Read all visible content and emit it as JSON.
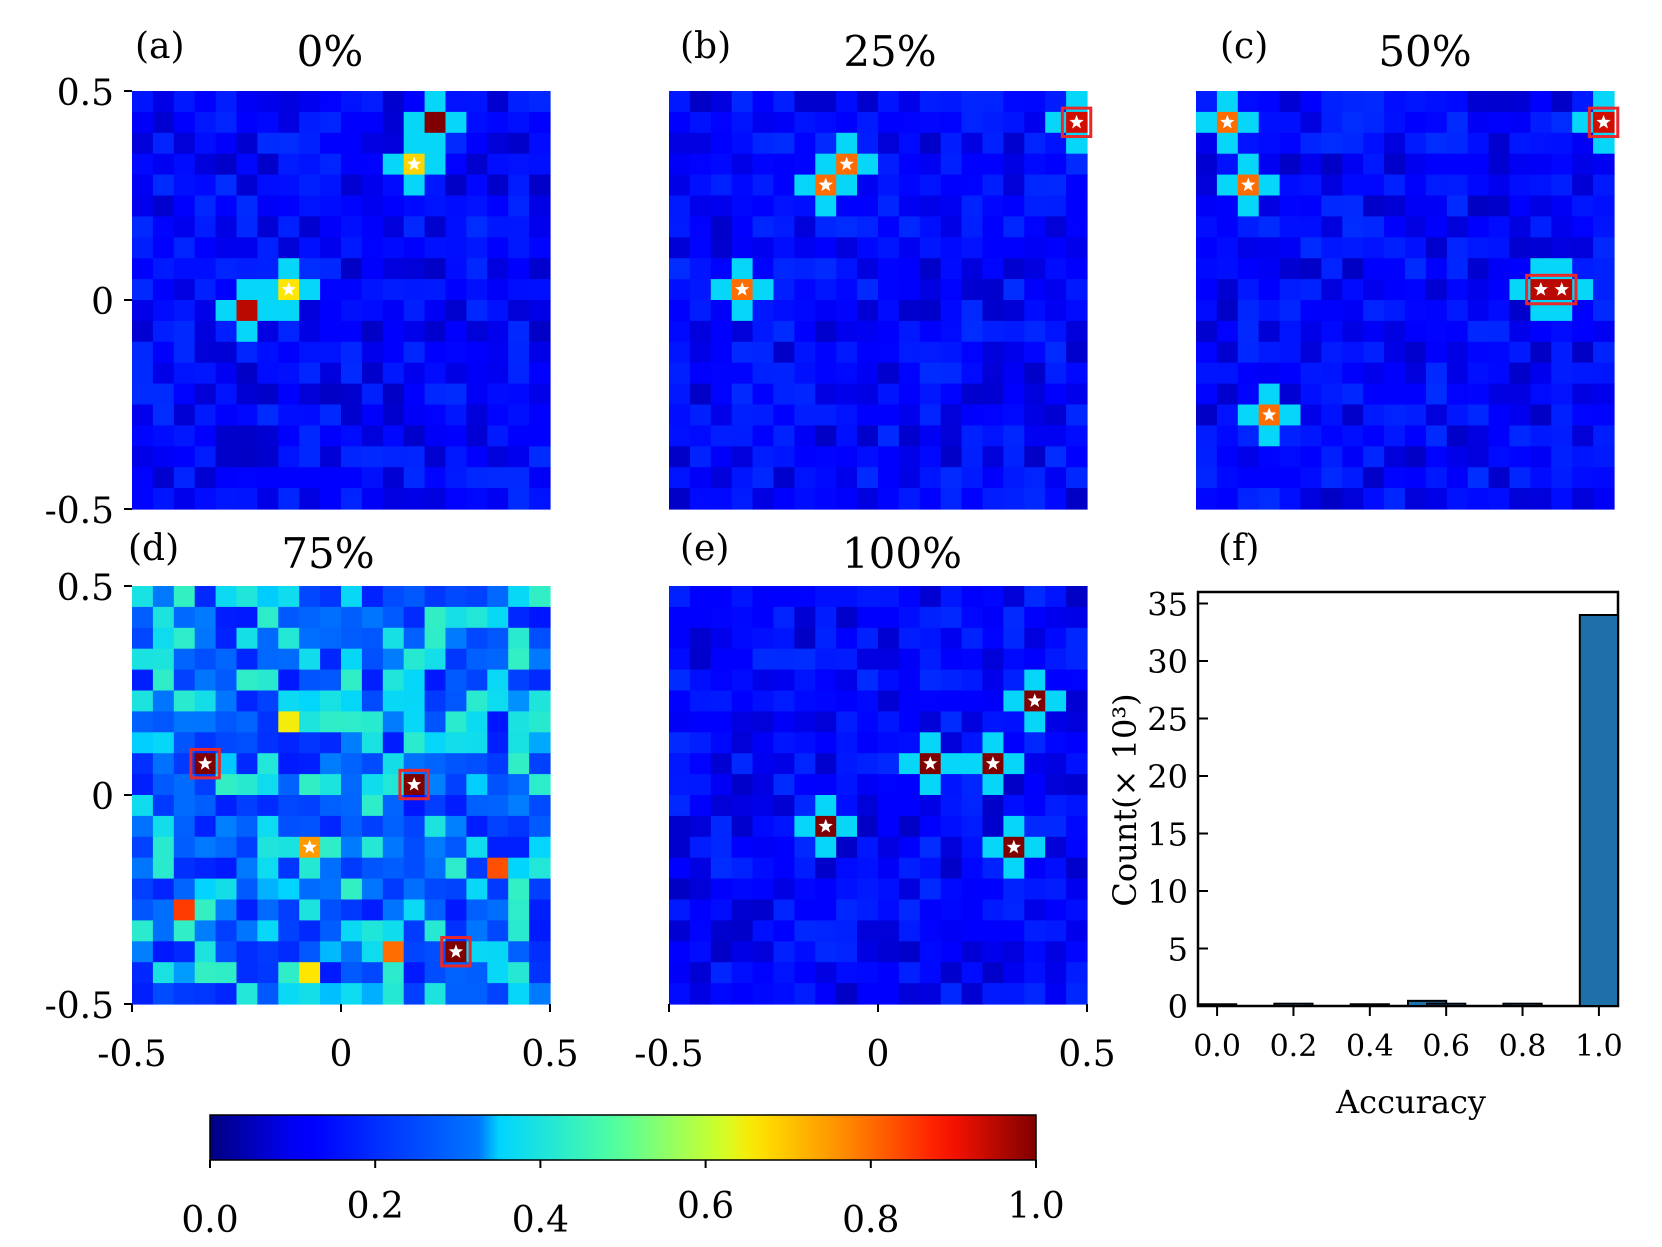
{
  "chart_data": [
    {
      "type": "heatmap",
      "panel": "(a)",
      "title": "0%",
      "grid": [
        20,
        20
      ],
      "xlim": [
        -0.5,
        0.5
      ],
      "ylim": [
        -0.5,
        0.5
      ],
      "xticks": [],
      "yticks": [
        "0.5",
        "0",
        "-0.5"
      ],
      "background_level": 0.13,
      "background_variation": 0.07,
      "hotspots": [
        {
          "col": 14,
          "row": 1,
          "v": 1.0,
          "glow": true,
          "star": false,
          "box": false
        },
        {
          "col": 13,
          "row": 3,
          "v": 0.68,
          "glow": true,
          "star": true,
          "box": false
        },
        {
          "col": 7,
          "row": 9,
          "v": 0.66,
          "glow": true,
          "star": true,
          "box": false
        },
        {
          "col": 5,
          "row": 10,
          "v": 0.95,
          "glow": true,
          "star": false,
          "box": false
        }
      ]
    },
    {
      "type": "heatmap",
      "panel": "(b)",
      "title": "25%",
      "grid": [
        20,
        20
      ],
      "xlim": [
        -0.5,
        0.5
      ],
      "ylim": [
        -0.5,
        0.5
      ],
      "xticks": [],
      "yticks": [],
      "background_level": 0.13,
      "background_variation": 0.07,
      "hotspots": [
        {
          "col": 19,
          "row": 1,
          "v": 0.93,
          "glow": true,
          "star": true,
          "box": true
        },
        {
          "col": 8,
          "row": 3,
          "v": 0.8,
          "glow": true,
          "star": true,
          "box": false
        },
        {
          "col": 7,
          "row": 4,
          "v": 0.8,
          "glow": true,
          "star": true,
          "box": false
        },
        {
          "col": 3,
          "row": 9,
          "v": 0.8,
          "glow": true,
          "star": true,
          "box": false
        }
      ]
    },
    {
      "type": "heatmap",
      "panel": "(c)",
      "title": "50%",
      "grid": [
        20,
        20
      ],
      "xlim": [
        -0.5,
        0.5
      ],
      "ylim": [
        -0.5,
        0.5
      ],
      "xticks": [],
      "yticks": [],
      "background_level": 0.13,
      "background_variation": 0.07,
      "hotspots": [
        {
          "col": 1,
          "row": 1,
          "v": 0.8,
          "glow": true,
          "star": true,
          "box": false
        },
        {
          "col": 19,
          "row": 1,
          "v": 0.93,
          "glow": true,
          "star": true,
          "box": true
        },
        {
          "col": 2,
          "row": 4,
          "v": 0.8,
          "glow": true,
          "star": true,
          "box": false
        },
        {
          "col": 16,
          "row": 9,
          "v": 0.95,
          "glow": true,
          "star": true,
          "box": true,
          "w": 2
        },
        {
          "col": 3,
          "row": 15,
          "v": 0.8,
          "glow": true,
          "star": true,
          "box": false
        }
      ]
    },
    {
      "type": "heatmap",
      "panel": "(d)",
      "title": "75%",
      "grid": [
        20,
        20
      ],
      "xlim": [
        -0.5,
        0.5
      ],
      "ylim": [
        -0.5,
        0.5
      ],
      "xticks": [
        "-0.5",
        "0",
        "0.5"
      ],
      "yticks": [
        "0.5",
        "0",
        "-0.5"
      ],
      "background_level": 0.3,
      "background_variation": 0.14,
      "hotspots": [
        {
          "col": 3,
          "row": 8,
          "v": 1.0,
          "glow": false,
          "star": true,
          "box": true
        },
        {
          "col": 13,
          "row": 9,
          "v": 1.0,
          "glow": false,
          "star": true,
          "box": true
        },
        {
          "col": 15,
          "row": 17,
          "v": 1.0,
          "glow": false,
          "star": true,
          "box": true
        },
        {
          "col": 8,
          "row": 12,
          "v": 0.75,
          "glow": false,
          "star": true,
          "box": false
        },
        {
          "col": 7,
          "row": 6,
          "v": 0.65,
          "glow": false,
          "star": false,
          "box": false
        },
        {
          "col": 8,
          "row": 18,
          "v": 0.66,
          "glow": false,
          "star": false,
          "box": false
        },
        {
          "col": 12,
          "row": 17,
          "v": 0.8,
          "glow": false,
          "star": false,
          "box": false
        },
        {
          "col": 2,
          "row": 15,
          "v": 0.85,
          "glow": false,
          "star": false,
          "box": false
        },
        {
          "col": 17,
          "row": 13,
          "v": 0.83,
          "glow": false,
          "star": false,
          "box": false
        }
      ]
    },
    {
      "type": "heatmap",
      "panel": "(e)",
      "title": "100%",
      "grid": [
        20,
        20
      ],
      "xlim": [
        -0.5,
        0.5
      ],
      "ylim": [
        -0.5,
        0.5
      ],
      "xticks": [
        "-0.5",
        "0",
        "0.5"
      ],
      "yticks": [],
      "background_level": 0.13,
      "background_variation": 0.07,
      "hotspots": [
        {
          "col": 17,
          "row": 5,
          "v": 1.0,
          "glow": true,
          "star": true,
          "box": false
        },
        {
          "col": 12,
          "row": 8,
          "v": 1.0,
          "glow": true,
          "star": true,
          "box": false
        },
        {
          "col": 15,
          "row": 8,
          "v": 1.0,
          "glow": true,
          "star": true,
          "box": false
        },
        {
          "col": 7,
          "row": 11,
          "v": 1.0,
          "glow": true,
          "star": true,
          "box": false
        },
        {
          "col": 16,
          "row": 12,
          "v": 1.0,
          "glow": true,
          "star": true,
          "box": false
        }
      ]
    },
    {
      "type": "bar",
      "panel": "(f)",
      "title": "",
      "xlabel": "Accuracy",
      "ylabel": "Count(× 10³)",
      "x": [
        0.0,
        0.2,
        0.4,
        0.6,
        0.8,
        1.0
      ],
      "xtick_labels": [
        "0.0",
        "0.2",
        "0.4",
        "0.6",
        "0.8",
        "1.0"
      ],
      "xlim": [
        -0.05,
        1.05
      ],
      "ylim": [
        0,
        36
      ],
      "yticks": [
        0,
        5,
        10,
        15,
        20,
        25,
        30,
        35
      ],
      "ytick_labels": [
        "0",
        "5",
        "10",
        "15",
        "20",
        "25",
        "30",
        "35"
      ],
      "bar_width": 0.1,
      "bars": [
        {
          "x": 0.0,
          "value": 0.15
        },
        {
          "x": 0.2,
          "value": 0.2
        },
        {
          "x": 0.4,
          "value": 0.15
        },
        {
          "x": 0.55,
          "value": 0.45
        },
        {
          "x": 0.6,
          "value": 0.2
        },
        {
          "x": 0.8,
          "value": 0.2
        },
        {
          "x": 1.0,
          "value": 34
        }
      ],
      "color": "#1f6fa8"
    }
  ],
  "colorbar": {
    "colormap": "jet",
    "min": 0.0,
    "max": 1.0,
    "ticks": [
      0.0,
      0.2,
      0.4,
      0.6,
      0.8,
      1.0
    ],
    "tick_labels": [
      "0.0",
      "0.2",
      "0.4",
      "0.6",
      "0.8",
      "1.0"
    ]
  },
  "colors": {
    "box": "#e8282b",
    "star": "#ffffff",
    "bar_edge": "#000000"
  }
}
